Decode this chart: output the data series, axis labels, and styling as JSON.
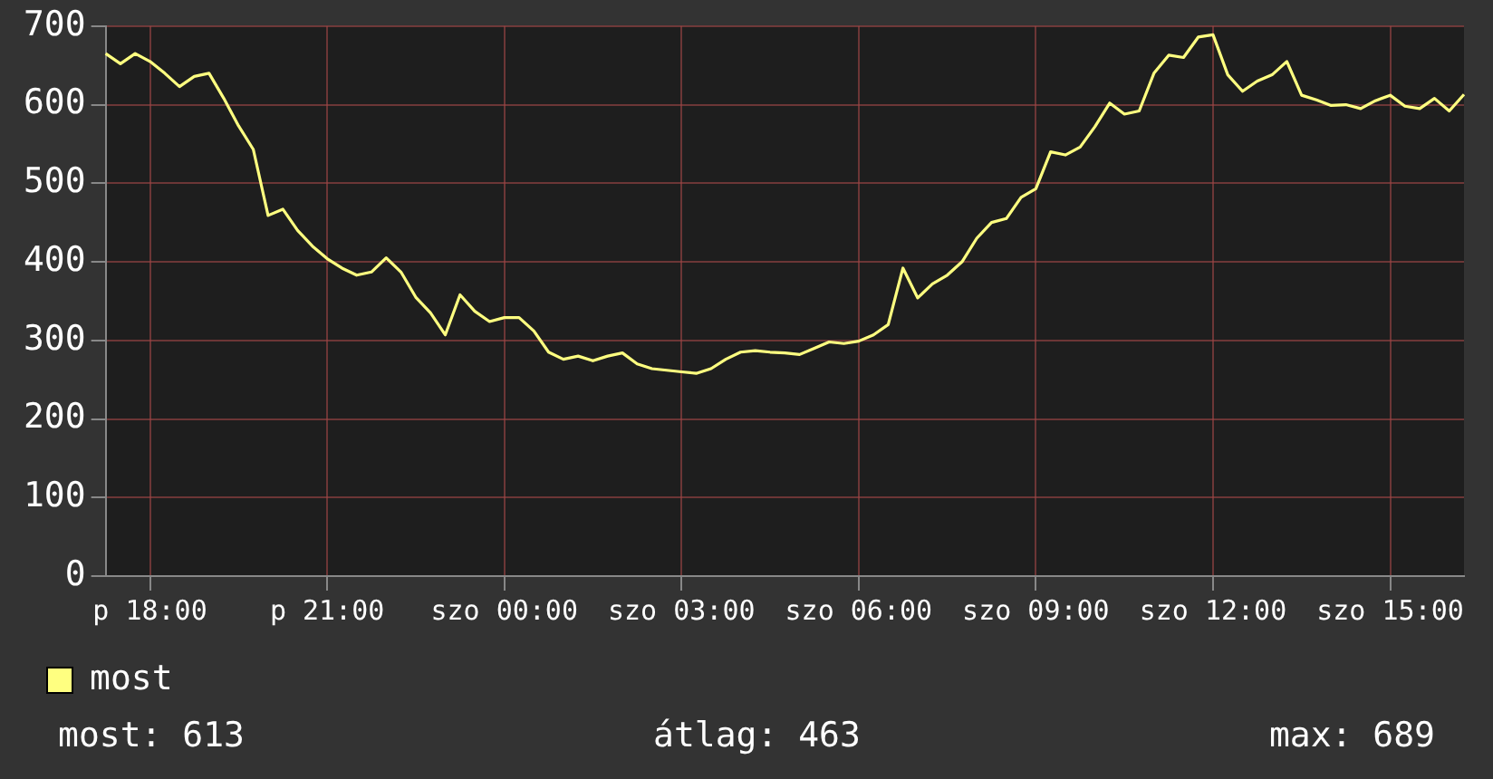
{
  "chart_data": {
    "type": "line",
    "categories": [
      null,
      null,
      null,
      "p 18:00",
      null,
      null,
      null,
      null,
      null,
      null,
      null,
      null,
      null,
      null,
      null,
      "p 21:00",
      null,
      null,
      null,
      null,
      null,
      null,
      null,
      null,
      null,
      null,
      null,
      "szo 00:00",
      null,
      null,
      null,
      null,
      null,
      null,
      null,
      null,
      null,
      null,
      null,
      "szo 03:00",
      null,
      null,
      null,
      null,
      null,
      null,
      null,
      null,
      null,
      null,
      null,
      "szo 06:00",
      null,
      null,
      null,
      null,
      null,
      null,
      null,
      null,
      null,
      null,
      null,
      "szo 09:00",
      null,
      null,
      null,
      null,
      null,
      null,
      null,
      null,
      null,
      null,
      null,
      "szo 12:00",
      null,
      null,
      null,
      null,
      null,
      null,
      null,
      null,
      null,
      null,
      null,
      "szo 15:00",
      null,
      null,
      null,
      null,
      null
    ],
    "series": [
      {
        "name": "most",
        "color": "#ffff80",
        "values": [
          665,
          652,
          665,
          655,
          640,
          623,
          636,
          640,
          608,
          573,
          543,
          459,
          467,
          440,
          420,
          404,
          392,
          383,
          387,
          405,
          387,
          355,
          335,
          307,
          358,
          337,
          324,
          329,
          329,
          312,
          285,
          276,
          280,
          274,
          280,
          284,
          270,
          264,
          262,
          260,
          258,
          264,
          276,
          285,
          287,
          285,
          284,
          282,
          290,
          298,
          296,
          299,
          307,
          320,
          392,
          354,
          372,
          383,
          400,
          430,
          450,
          455,
          482,
          493,
          540,
          536,
          546,
          572,
          602,
          588,
          592,
          640,
          663,
          660,
          686,
          689,
          638,
          617,
          630,
          638,
          655,
          612,
          606,
          599,
          600,
          595,
          605,
          612,
          598,
          595,
          608,
          592,
          613
        ]
      }
    ],
    "ylim": [
      0,
      700
    ],
    "yticks": [
      0,
      100,
      200,
      300,
      400,
      500,
      600,
      700
    ],
    "grid": true,
    "legend": "bottom left",
    "marker": "none",
    "line_style": "solid",
    "annotations": [
      "most: 613",
      "átlag: 463",
      "max: 689"
    ]
  }
}
